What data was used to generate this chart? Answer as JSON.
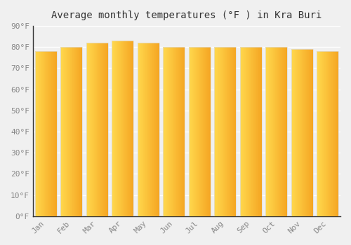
{
  "title": "Average monthly temperatures (°F ) in Kra Buri",
  "months": [
    "Jan",
    "Feb",
    "Mar",
    "Apr",
    "May",
    "Jun",
    "Jul",
    "Aug",
    "Sep",
    "Oct",
    "Nov",
    "Dec"
  ],
  "values": [
    78,
    80,
    82,
    83,
    82,
    80,
    80,
    80,
    80,
    80,
    79,
    78
  ],
  "bar_color_left": "#FFD84D",
  "bar_color_right": "#F5A623",
  "bar_edge_color": "#cccccc",
  "ylim": [
    0,
    90
  ],
  "yticks": [
    0,
    10,
    20,
    30,
    40,
    50,
    60,
    70,
    80,
    90
  ],
  "ytick_labels": [
    "0°F",
    "10°F",
    "20°F",
    "30°F",
    "40°F",
    "50°F",
    "60°F",
    "70°F",
    "80°F",
    "90°F"
  ],
  "background_color": "#f0f0f0",
  "grid_color": "#ffffff",
  "title_fontsize": 10,
  "tick_fontsize": 8,
  "font_family": "monospace",
  "bar_width": 0.85,
  "num_gradient_steps": 50
}
